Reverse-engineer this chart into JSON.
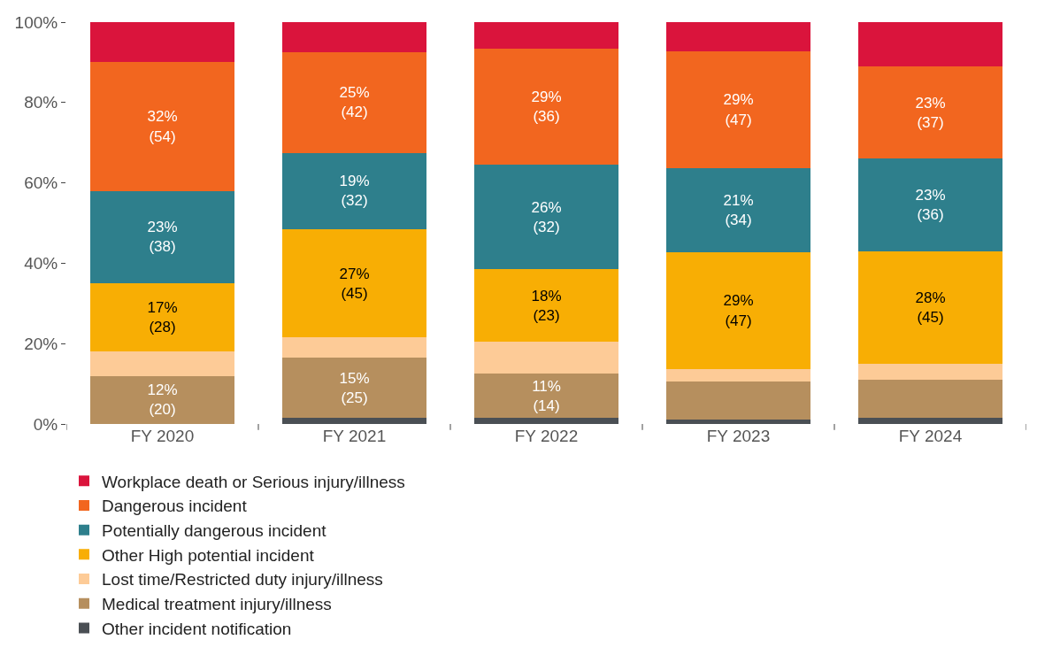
{
  "chart_data": {
    "type": "bar",
    "stacked": true,
    "categories": [
      "FY 2020",
      "FY 2021",
      "FY 2022",
      "FY 2023",
      "FY 2024"
    ],
    "series": [
      {
        "name": "Other incident notification",
        "color": "#4a4f54",
        "values": [
          0,
          1.5,
          1.5,
          1,
          1.5
        ],
        "value_labels": [
          null,
          null,
          null,
          null,
          null
        ]
      },
      {
        "name": "Medical treatment injury/illness",
        "color": "#b68f5e",
        "values": [
          12,
          15,
          11,
          9.5,
          9.5
        ],
        "value_labels": [
          "12%\n(20)",
          "15%\n(25)",
          "11%\n(14)",
          null,
          null
        ]
      },
      {
        "name": "Lost time/Restricted duty injury/illness",
        "color": "#fdcb97",
        "values": [
          6,
          5,
          8,
          3.2,
          4
        ],
        "value_labels": [
          null,
          null,
          null,
          null,
          null
        ]
      },
      {
        "name": "Other High potential incident",
        "color": "#f8ae04",
        "values": [
          17,
          27,
          18,
          29,
          28
        ],
        "value_labels": [
          "17%\n(28)",
          "27%\n(45)",
          "18%\n(23)",
          "29%\n(47)",
          "28%\n(45)"
        ]
      },
      {
        "name": "Potentially dangerous incident",
        "color": "#2e7f8c",
        "values": [
          23,
          19,
          26,
          21,
          23
        ],
        "value_labels": [
          "23%\n(38)",
          "19%\n(32)",
          "26%\n(32)",
          "21%\n(34)",
          "23%\n(36)"
        ]
      },
      {
        "name": "Dangerous incident",
        "color": "#f2661f",
        "values": [
          32,
          25,
          29,
          29,
          23
        ],
        "value_labels": [
          "32%\n(54)",
          "25%\n(42)",
          "29%\n(36)",
          "29%\n(47)",
          "23%\n(37)"
        ]
      },
      {
        "name": "Workplace death or Serious injury/illness",
        "color": "#da143c",
        "values": [
          10,
          7.5,
          6.5,
          7.3,
          11
        ],
        "value_labels": [
          null,
          null,
          null,
          null,
          null
        ]
      }
    ],
    "ylim": [
      0,
      100
    ],
    "yticks": [
      {
        "value": 0,
        "label": "0%"
      },
      {
        "value": 20,
        "label": "20%"
      },
      {
        "value": 40,
        "label": "40%"
      },
      {
        "value": 60,
        "label": "60%"
      },
      {
        "value": 80,
        "label": "80%"
      },
      {
        "value": 100,
        "label": "100%"
      }
    ],
    "legend": "bottom"
  }
}
